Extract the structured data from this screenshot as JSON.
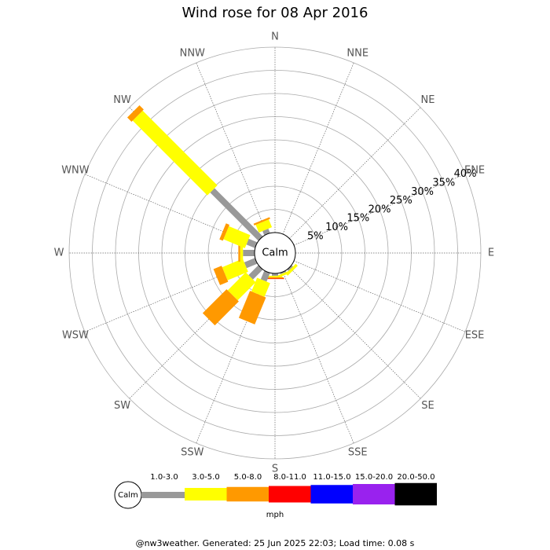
{
  "chart_data": {
    "type": "windrose",
    "title": "Wind rose for 08 Apr 2016",
    "categories": [
      "N",
      "NNE",
      "NE",
      "ENE",
      "E",
      "ESE",
      "SE",
      "SSE",
      "S",
      "SSW",
      "SW",
      "WSW",
      "W",
      "WNW",
      "NW",
      "NNW"
    ],
    "calm_label": "Calm",
    "rlim": [
      0,
      40
    ],
    "rticks": [
      {
        "value": 5,
        "label": "5%"
      },
      {
        "value": 10,
        "label": "10%"
      },
      {
        "value": 15,
        "label": "15%"
      },
      {
        "value": 20,
        "label": "20%"
      },
      {
        "value": 25,
        "label": "25%"
      },
      {
        "value": 30,
        "label": "30%"
      },
      {
        "value": 35,
        "label": "35%"
      },
      {
        "value": 40,
        "label": "40%"
      }
    ],
    "series": [
      {
        "name": "1.0-3.0",
        "color": "#999999",
        "values": [
          0,
          0,
          0,
          0,
          0,
          0,
          0.4,
          0.3,
          0.5,
          2,
          3,
          2.5,
          2.5,
          2,
          14.7,
          1
        ]
      },
      {
        "name": "3.0-5.0",
        "color": "#ffff00",
        "values": [
          0,
          0,
          0,
          0,
          0,
          0,
          0.6,
          0.5,
          0.3,
          3.2,
          5.5,
          4.8,
          0.6,
          5,
          22.8,
          1.8
        ]
      },
      {
        "name": "5.0-8.0",
        "color": "#ff9900",
        "values": [
          0,
          0,
          0,
          0,
          0,
          0,
          0,
          0,
          0.3,
          6.3,
          7.3,
          1.9,
          0.4,
          0.8,
          1.3,
          0.4
        ]
      },
      {
        "name": "8.0-11.0",
        "color": "#ff0000",
        "values": [
          0,
          0,
          0,
          0,
          0,
          0,
          0,
          0,
          0.1,
          0,
          0,
          0,
          0,
          0,
          0,
          0
        ]
      },
      {
        "name": "11.0-15.0",
        "color": "#0000ff",
        "values": [
          0,
          0,
          0,
          0,
          0,
          0,
          0,
          0,
          0,
          0,
          0,
          0,
          0,
          0,
          0,
          0
        ]
      },
      {
        "name": "15.0-20.0",
        "color": "#9922ee",
        "values": [
          0,
          0,
          0,
          0,
          0,
          0,
          0,
          0,
          0,
          0,
          0,
          0,
          0,
          0,
          0,
          0
        ]
      },
      {
        "name": "20.0-50.0",
        "color": "#000000",
        "values": [
          0,
          0,
          0,
          0,
          0,
          0,
          0,
          0,
          0,
          0,
          0,
          0,
          0,
          0,
          0,
          0
        ]
      }
    ],
    "legend_unit": "mph",
    "footer": "@nw3weather. Generated: 25 Jun 2025 22:03; Load time: 0.08 s"
  }
}
